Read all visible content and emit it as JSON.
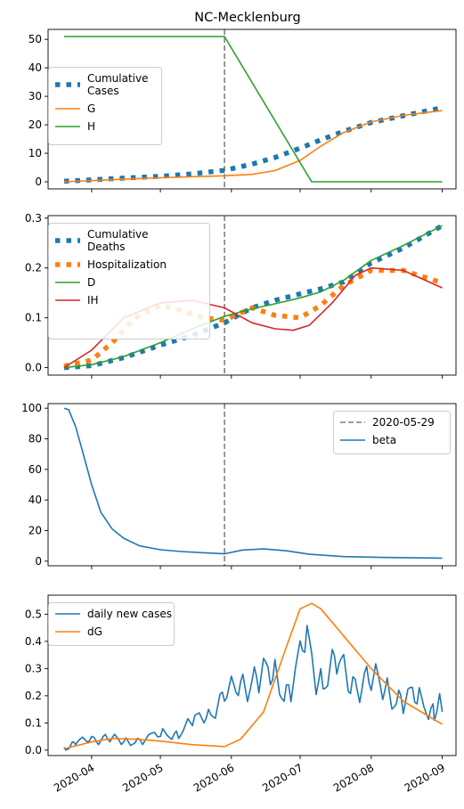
{
  "figure_title": "NC-Mecklenburg",
  "vline_date": "2020-05-29",
  "x_ticks": [
    {
      "label": "2020-04",
      "date": "2020-04-01"
    },
    {
      "label": "2020-05",
      "date": "2020-05-01"
    },
    {
      "label": "2020-06",
      "date": "2020-06-01"
    },
    {
      "label": "2020-07",
      "date": "2020-07-01"
    },
    {
      "label": "2020-08",
      "date": "2020-08-01"
    },
    {
      "label": "2020-09",
      "date": "2020-09-01"
    }
  ],
  "colors": {
    "blue": "#1f77b4",
    "orange": "#ff7f0e",
    "green": "#2ca02c",
    "red": "#d62728",
    "vline": "#808080"
  },
  "chart_data": [
    {
      "type": "line",
      "title": "NC-Mecklenburg",
      "xlim": [
        "2020-03-13",
        "2020-09-07"
      ],
      "ylim": [
        -2.5,
        53.5
      ],
      "yticks": [
        0,
        10,
        20,
        30,
        40,
        50
      ],
      "legend": "center-left",
      "series": [
        {
          "name": "Cumulative\nCases",
          "style": "dotted",
          "color": "#1f77b4",
          "x": [
            "2020-03-20",
            "2020-04-01",
            "2020-04-15",
            "2020-05-01",
            "2020-05-15",
            "2020-05-29",
            "2020-06-10",
            "2020-06-20",
            "2020-07-01",
            "2020-07-10",
            "2020-07-20",
            "2020-08-01",
            "2020-08-15",
            "2020-09-01"
          ],
          "y": [
            0.2,
            0.7,
            1.3,
            1.9,
            2.8,
            4.0,
            6.2,
            8.5,
            11.8,
            14.7,
            17.7,
            20.8,
            23.2,
            26.0
          ]
        },
        {
          "name": "G",
          "style": "solid",
          "color": "#ff7f0e",
          "x": [
            "2020-03-20",
            "2020-04-01",
            "2020-04-15",
            "2020-05-01",
            "2020-05-15",
            "2020-05-29",
            "2020-06-10",
            "2020-06-20",
            "2020-07-01",
            "2020-07-10",
            "2020-07-20",
            "2020-08-01",
            "2020-08-15",
            "2020-09-01"
          ],
          "y": [
            0,
            0.4,
            0.9,
            1.4,
            1.8,
            2.1,
            2.6,
            3.9,
            7.5,
            12.5,
            17.3,
            21.0,
            23.3,
            25.0
          ]
        },
        {
          "name": "H",
          "style": "solid",
          "color": "#2ca02c",
          "x": [
            "2020-03-20",
            "2020-05-29",
            "2020-07-06",
            "2020-09-01"
          ],
          "y": [
            51,
            51,
            0,
            0
          ]
        }
      ]
    },
    {
      "type": "line",
      "xlim": [
        "2020-03-13",
        "2020-09-07"
      ],
      "ylim": [
        -0.015,
        0.305
      ],
      "yticks": [
        0.0,
        0.1,
        0.2,
        0.3
      ],
      "legend": "upper-left",
      "series": [
        {
          "name": "Cumulative\nDeaths",
          "style": "dotted",
          "color": "#1f77b4",
          "x": [
            "2020-03-20",
            "2020-04-01",
            "2020-04-15",
            "2020-05-01",
            "2020-05-15",
            "2020-05-29",
            "2020-06-10",
            "2020-06-20",
            "2020-07-01",
            "2020-07-10",
            "2020-07-20",
            "2020-08-01",
            "2020-08-15",
            "2020-09-01"
          ],
          "y": [
            0.0,
            0.004,
            0.02,
            0.045,
            0.065,
            0.09,
            0.12,
            0.135,
            0.148,
            0.158,
            0.172,
            0.21,
            0.24,
            0.285
          ]
        },
        {
          "name": "Hospitalization",
          "style": "dotted",
          "color": "#ff7f0e",
          "x": [
            "2020-03-20",
            "2020-04-01",
            "2020-04-10",
            "2020-04-20",
            "2020-05-01",
            "2020-05-10",
            "2020-05-20",
            "2020-05-29",
            "2020-06-10",
            "2020-06-20",
            "2020-07-01",
            "2020-07-10",
            "2020-07-20",
            "2020-08-01",
            "2020-08-15",
            "2020-09-01"
          ],
          "y": [
            0.003,
            0.015,
            0.05,
            0.1,
            0.125,
            0.115,
            0.1,
            0.095,
            0.12,
            0.105,
            0.1,
            0.125,
            0.165,
            0.195,
            0.195,
            0.17
          ]
        },
        {
          "name": "D",
          "style": "solid",
          "color": "#2ca02c",
          "x": [
            "2020-03-20",
            "2020-04-01",
            "2020-04-15",
            "2020-05-01",
            "2020-05-15",
            "2020-05-29",
            "2020-06-10",
            "2020-06-20",
            "2020-07-01",
            "2020-07-10",
            "2020-07-20",
            "2020-08-01",
            "2020-08-15",
            "2020-09-01"
          ],
          "y": [
            0.0,
            0.006,
            0.022,
            0.05,
            0.078,
            0.103,
            0.118,
            0.128,
            0.14,
            0.152,
            0.175,
            0.215,
            0.245,
            0.285
          ]
        },
        {
          "name": "IH",
          "style": "solid",
          "color": "#d62728",
          "x": [
            "2020-03-20",
            "2020-04-01",
            "2020-04-15",
            "2020-05-01",
            "2020-05-15",
            "2020-05-29",
            "2020-06-10",
            "2020-06-20",
            "2020-06-28",
            "2020-07-05",
            "2020-07-15",
            "2020-07-25",
            "2020-08-01",
            "2020-08-15",
            "2020-09-01"
          ],
          "y": [
            0.0,
            0.035,
            0.1,
            0.13,
            0.135,
            0.12,
            0.09,
            0.078,
            0.075,
            0.085,
            0.13,
            0.185,
            0.2,
            0.195,
            0.16
          ]
        }
      ]
    },
    {
      "type": "line",
      "xlim": [
        "2020-03-13",
        "2020-09-07"
      ],
      "ylim": [
        -3,
        103
      ],
      "yticks": [
        0,
        20,
        40,
        60,
        80,
        100
      ],
      "legend": "upper-right",
      "series": [
        {
          "name": "2020-05-29",
          "style": "dashed",
          "color": "#808080",
          "vline": "2020-05-29"
        },
        {
          "name": "beta",
          "style": "solid",
          "color": "#1f77b4",
          "x": [
            "2020-03-20",
            "2020-03-22",
            "2020-03-25",
            "2020-03-28",
            "2020-04-01",
            "2020-04-05",
            "2020-04-10",
            "2020-04-15",
            "2020-04-22",
            "2020-05-01",
            "2020-05-10",
            "2020-05-20",
            "2020-05-29",
            "2020-06-06",
            "2020-06-15",
            "2020-06-25",
            "2020-07-05",
            "2020-07-20",
            "2020-08-05",
            "2020-08-20",
            "2020-09-01"
          ],
          "y": [
            100,
            99,
            88,
            72,
            50,
            32,
            21,
            15,
            10,
            7.5,
            6.3,
            5.5,
            4.8,
            7.3,
            8.0,
            6.8,
            4.5,
            3.0,
            2.5,
            2.2,
            2.0
          ]
        }
      ]
    },
    {
      "type": "line",
      "xlim": [
        "2020-03-13",
        "2020-09-07"
      ],
      "ylim": [
        -0.02,
        0.57
      ],
      "yticks": [
        0.0,
        0.1,
        0.2,
        0.3,
        0.4,
        0.5
      ],
      "legend": "upper-left",
      "series": [
        {
          "name": "daily new cases",
          "style": "solid",
          "color": "#1f77b4",
          "x": [
            "2020-03-20",
            "2020-03-25",
            "2020-04-01",
            "2020-04-08",
            "2020-04-15",
            "2020-04-22",
            "2020-05-01",
            "2020-05-08",
            "2020-05-15",
            "2020-05-22",
            "2020-05-29",
            "2020-06-05",
            "2020-06-12",
            "2020-06-19",
            "2020-06-26",
            "2020-07-03",
            "2020-07-10",
            "2020-07-17",
            "2020-07-24",
            "2020-07-31",
            "2020-08-07",
            "2020-08-14",
            "2020-08-21",
            "2020-08-28",
            "2020-09-01"
          ],
          "y": [
            0.01,
            0.02,
            0.05,
            0.04,
            0.03,
            0.04,
            0.05,
            0.07,
            0.09,
            0.15,
            0.18,
            0.25,
            0.27,
            0.26,
            0.24,
            0.36,
            0.3,
            0.28,
            0.27,
            0.25,
            0.22,
            0.2,
            0.17,
            0.17,
            0.14
          ]
        },
        {
          "name": "dG",
          "style": "solid",
          "color": "#ff7f0e",
          "x": [
            "2020-03-20",
            "2020-04-01",
            "2020-04-10",
            "2020-04-20",
            "2020-05-01",
            "2020-05-15",
            "2020-05-29",
            "2020-06-05",
            "2020-06-15",
            "2020-06-25",
            "2020-07-01",
            "2020-07-06",
            "2020-07-10",
            "2020-07-20",
            "2020-08-01",
            "2020-08-15",
            "2020-09-01"
          ],
          "y": [
            0.005,
            0.03,
            0.043,
            0.04,
            0.033,
            0.02,
            0.013,
            0.04,
            0.14,
            0.38,
            0.52,
            0.54,
            0.52,
            0.42,
            0.3,
            0.18,
            0.095
          ]
        }
      ]
    }
  ]
}
